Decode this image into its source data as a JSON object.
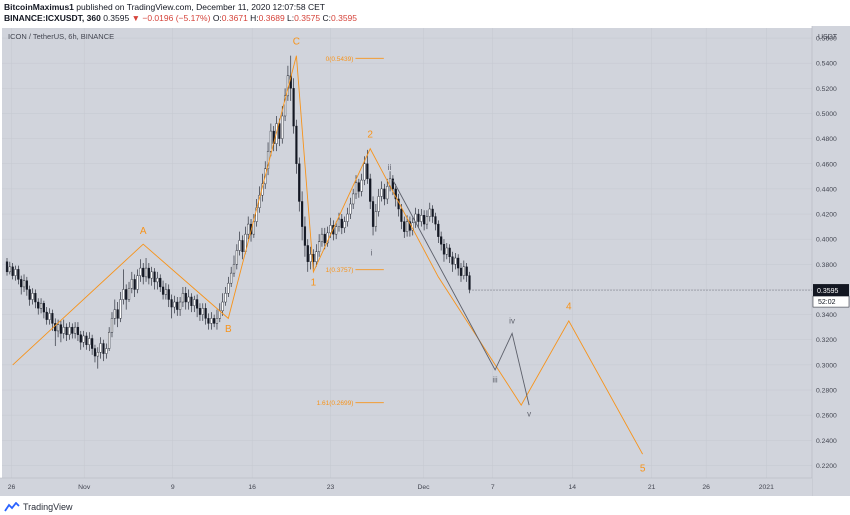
{
  "header": {
    "author": "BitcoinMaximus1",
    "published_text": "published on TradingView.com, December 11, 2020 12:07:58 CET",
    "symbol_line": "BINANCE:ICXUSDT, 360",
    "price": "0.3595",
    "arrow": "▼",
    "change": "−0.0196 (−5.17%)",
    "o_label": "O:",
    "o_val": "0.3671",
    "h_label": "H:",
    "h_val": "0.3689",
    "l_label": "L:",
    "l_val": "0.3575",
    "c_label": "C:",
    "c_val": "0.3595"
  },
  "footer": {
    "brand": "TradingView"
  },
  "chart_data": {
    "type": "candlestick",
    "title": "ICON / TetherUS, 6h, BINANCE",
    "currency": "USDT",
    "x_ticks": [
      "26",
      "Nov",
      "9",
      "16",
      "23",
      "Dec",
      "7",
      "14",
      "21",
      "26",
      "2021"
    ],
    "y_ticks": [
      "0.2200",
      "0.2400",
      "0.2600",
      "0.2800",
      "0.3000",
      "0.3200",
      "0.3400",
      "0.3600",
      "0.3800",
      "0.4000",
      "0.4200",
      "0.4400",
      "0.4600",
      "0.4800",
      "0.5000",
      "0.5200",
      "0.5400",
      "0.5600"
    ],
    "y_range": [
      0.21,
      0.568
    ],
    "last_price": "0.3595",
    "countdown": "52:02",
    "colors": {
      "background": "#d1d4dc",
      "orange": "#f7931a",
      "wave": "#5d606b",
      "candle": "#131722",
      "grid": "#c5c8d0"
    },
    "orange_path": [
      [
        0.5,
        0.3
      ],
      [
        12,
        0.396
      ],
      [
        19.5,
        0.337
      ],
      [
        25.5,
        0.546
      ],
      [
        27,
        0.374
      ],
      [
        32,
        0.472
      ],
      [
        38,
        0.37
      ],
      [
        45.3,
        0.268
      ],
      [
        49.5,
        0.335
      ],
      [
        56,
        0.229
      ]
    ],
    "wave_path": [
      [
        34,
        0.447
      ],
      [
        43,
        0.296
      ],
      [
        44.5,
        0.325
      ],
      [
        46,
        0.268
      ]
    ],
    "fib_levels": [
      {
        "label": "0(0.5439)",
        "value": 0.5439
      },
      {
        "label": "1(0.3757)",
        "value": 0.3757
      },
      {
        "label": "1.61(0.2699)",
        "value": 0.2699
      }
    ],
    "wave_labels": [
      {
        "text": "A",
        "x": 12,
        "y": 0.404,
        "color": "orange"
      },
      {
        "text": "B",
        "x": 19.5,
        "y": 0.326,
        "color": "orange"
      },
      {
        "text": "C",
        "x": 25.5,
        "y": 0.555,
        "color": "orange"
      },
      {
        "text": "1",
        "x": 27,
        "y": 0.363,
        "color": "orange"
      },
      {
        "text": "2",
        "x": 32,
        "y": 0.481,
        "color": "orange"
      },
      {
        "text": "4",
        "x": 49.5,
        "y": 0.344,
        "color": "orange"
      },
      {
        "text": "5",
        "x": 56,
        "y": 0.215,
        "color": "orange"
      },
      {
        "text": "i",
        "x": 32.1,
        "y": 0.387,
        "color": "wave"
      },
      {
        "text": "ii",
        "x": 33.7,
        "y": 0.455,
        "color": "wave"
      },
      {
        "text": "iii",
        "x": 43,
        "y": 0.286,
        "color": "wave"
      },
      {
        "text": "iv",
        "x": 44.5,
        "y": 0.333,
        "color": "wave"
      },
      {
        "text": "v",
        "x": 46,
        "y": 0.259,
        "color": "wave"
      }
    ],
    "candles": [
      [
        0.0,
        0.382,
        0.374,
        0.385,
        0.371
      ],
      [
        0.25,
        0.374,
        0.378,
        0.382,
        0.372
      ],
      [
        0.5,
        0.378,
        0.371,
        0.381,
        0.368
      ],
      [
        0.75,
        0.371,
        0.376,
        0.379,
        0.367
      ],
      [
        1.0,
        0.376,
        0.368,
        0.379,
        0.364
      ],
      [
        1.25,
        0.368,
        0.362,
        0.371,
        0.356
      ],
      [
        1.5,
        0.362,
        0.367,
        0.372,
        0.358
      ],
      [
        1.75,
        0.367,
        0.36,
        0.37,
        0.355
      ],
      [
        2.0,
        0.36,
        0.352,
        0.363,
        0.347
      ],
      [
        2.25,
        0.352,
        0.357,
        0.361,
        0.348
      ],
      [
        2.5,
        0.357,
        0.35,
        0.36,
        0.345
      ],
      [
        2.75,
        0.35,
        0.345,
        0.353,
        0.34
      ],
      [
        3.0,
        0.345,
        0.349,
        0.353,
        0.341
      ],
      [
        3.25,
        0.349,
        0.342,
        0.351,
        0.337
      ],
      [
        3.5,
        0.342,
        0.336,
        0.346,
        0.332
      ],
      [
        3.75,
        0.336,
        0.341,
        0.345,
        0.332
      ],
      [
        4.0,
        0.341,
        0.333,
        0.344,
        0.327
      ],
      [
        4.25,
        0.333,
        0.327,
        0.337,
        0.315
      ],
      [
        4.5,
        0.327,
        0.332,
        0.336,
        0.322
      ],
      [
        4.75,
        0.332,
        0.325,
        0.335,
        0.318
      ],
      [
        5.0,
        0.325,
        0.33,
        0.336,
        0.321
      ],
      [
        5.25,
        0.33,
        0.324,
        0.333,
        0.319
      ],
      [
        5.5,
        0.324,
        0.33,
        0.334,
        0.32
      ],
      [
        5.75,
        0.33,
        0.325,
        0.333,
        0.321
      ],
      [
        6.0,
        0.325,
        0.33,
        0.334,
        0.321
      ],
      [
        6.25,
        0.33,
        0.324,
        0.334,
        0.319
      ],
      [
        6.5,
        0.324,
        0.318,
        0.327,
        0.312
      ],
      [
        6.75,
        0.318,
        0.323,
        0.327,
        0.314
      ],
      [
        7.0,
        0.323,
        0.316,
        0.326,
        0.312
      ],
      [
        7.25,
        0.316,
        0.321,
        0.326,
        0.311
      ],
      [
        7.5,
        0.321,
        0.313,
        0.324,
        0.308
      ],
      [
        7.75,
        0.313,
        0.307,
        0.316,
        0.302
      ],
      [
        8.0,
        0.307,
        0.31,
        0.314,
        0.297
      ],
      [
        8.25,
        0.31,
        0.317,
        0.322,
        0.305
      ],
      [
        8.5,
        0.317,
        0.309,
        0.32,
        0.303
      ],
      [
        8.75,
        0.309,
        0.313,
        0.317,
        0.305
      ],
      [
        9.0,
        0.313,
        0.326,
        0.33,
        0.311
      ],
      [
        9.25,
        0.326,
        0.337,
        0.342,
        0.322
      ],
      [
        9.5,
        0.337,
        0.344,
        0.352,
        0.332
      ],
      [
        9.75,
        0.344,
        0.337,
        0.35,
        0.33
      ],
      [
        10.0,
        0.337,
        0.352,
        0.358,
        0.334
      ],
      [
        10.25,
        0.352,
        0.36,
        0.376,
        0.348
      ],
      [
        10.5,
        0.36,
        0.352,
        0.364,
        0.344
      ],
      [
        10.75,
        0.352,
        0.361,
        0.366,
        0.35
      ],
      [
        11.0,
        0.361,
        0.368,
        0.374,
        0.357
      ],
      [
        11.25,
        0.368,
        0.36,
        0.372,
        0.354
      ],
      [
        11.5,
        0.36,
        0.371,
        0.376,
        0.357
      ],
      [
        11.75,
        0.371,
        0.377,
        0.384,
        0.366
      ],
      [
        12.0,
        0.377,
        0.37,
        0.381,
        0.364
      ],
      [
        12.25,
        0.37,
        0.377,
        0.385,
        0.366
      ],
      [
        12.5,
        0.377,
        0.369,
        0.381,
        0.364
      ],
      [
        12.75,
        0.369,
        0.374,
        0.378,
        0.363
      ],
      [
        13.0,
        0.374,
        0.366,
        0.377,
        0.36
      ],
      [
        13.25,
        0.366,
        0.369,
        0.374,
        0.36
      ],
      [
        13.5,
        0.369,
        0.362,
        0.372,
        0.358
      ],
      [
        13.75,
        0.362,
        0.356,
        0.367,
        0.352
      ],
      [
        14.0,
        0.356,
        0.36,
        0.365,
        0.352
      ],
      [
        14.25,
        0.36,
        0.352,
        0.364,
        0.346
      ],
      [
        14.5,
        0.352,
        0.346,
        0.356,
        0.337
      ],
      [
        14.75,
        0.346,
        0.35,
        0.355,
        0.341
      ],
      [
        15.0,
        0.35,
        0.344,
        0.354,
        0.339
      ],
      [
        15.25,
        0.344,
        0.35,
        0.354,
        0.339
      ],
      [
        15.5,
        0.35,
        0.357,
        0.362,
        0.346
      ],
      [
        15.75,
        0.357,
        0.35,
        0.362,
        0.344
      ],
      [
        16.0,
        0.35,
        0.354,
        0.36,
        0.344
      ],
      [
        16.25,
        0.354,
        0.347,
        0.357,
        0.342
      ],
      [
        16.5,
        0.347,
        0.352,
        0.355,
        0.342
      ],
      [
        16.75,
        0.352,
        0.345,
        0.356,
        0.338
      ],
      [
        17.0,
        0.345,
        0.34,
        0.349,
        0.335
      ],
      [
        17.25,
        0.34,
        0.345,
        0.349,
        0.335
      ],
      [
        17.5,
        0.345,
        0.337,
        0.349,
        0.332
      ],
      [
        17.75,
        0.337,
        0.333,
        0.341,
        0.328
      ],
      [
        18.0,
        0.333,
        0.337,
        0.342,
        0.328
      ],
      [
        18.25,
        0.337,
        0.333,
        0.34,
        0.33
      ],
      [
        18.5,
        0.333,
        0.337,
        0.344,
        0.328
      ],
      [
        18.75,
        0.337,
        0.343,
        0.349,
        0.334
      ],
      [
        19.0,
        0.343,
        0.35,
        0.357,
        0.339
      ],
      [
        19.25,
        0.35,
        0.357,
        0.362,
        0.347
      ],
      [
        19.5,
        0.357,
        0.365,
        0.37,
        0.354
      ],
      [
        19.75,
        0.365,
        0.373,
        0.378,
        0.362
      ],
      [
        20.0,
        0.373,
        0.38,
        0.387,
        0.37
      ],
      [
        20.25,
        0.38,
        0.391,
        0.396,
        0.376
      ],
      [
        20.5,
        0.391,
        0.399,
        0.406,
        0.387
      ],
      [
        20.75,
        0.399,
        0.39,
        0.403,
        0.384
      ],
      [
        21.0,
        0.39,
        0.404,
        0.41,
        0.388
      ],
      [
        21.25,
        0.404,
        0.412,
        0.418,
        0.4
      ],
      [
        21.5,
        0.412,
        0.404,
        0.416,
        0.398
      ],
      [
        21.75,
        0.404,
        0.414,
        0.42,
        0.401
      ],
      [
        22.0,
        0.414,
        0.425,
        0.432,
        0.41
      ],
      [
        22.25,
        0.425,
        0.435,
        0.442,
        0.421
      ],
      [
        22.5,
        0.435,
        0.444,
        0.452,
        0.43
      ],
      [
        22.75,
        0.444,
        0.456,
        0.462,
        0.44
      ],
      [
        23.0,
        0.456,
        0.47,
        0.477,
        0.451
      ],
      [
        23.25,
        0.47,
        0.486,
        0.492,
        0.466
      ],
      [
        23.5,
        0.486,
        0.476,
        0.49,
        0.47
      ],
      [
        23.75,
        0.476,
        0.492,
        0.498,
        0.47
      ],
      [
        24.0,
        0.492,
        0.48,
        0.496,
        0.474
      ],
      [
        24.25,
        0.48,
        0.498,
        0.506,
        0.476
      ],
      [
        24.5,
        0.498,
        0.514,
        0.52,
        0.494
      ],
      [
        24.75,
        0.514,
        0.53,
        0.538,
        0.51
      ],
      [
        25.0,
        0.53,
        0.52,
        0.546,
        0.51
      ],
      [
        25.25,
        0.52,
        0.49,
        0.528,
        0.484
      ],
      [
        25.5,
        0.49,
        0.46,
        0.495,
        0.452
      ],
      [
        25.75,
        0.46,
        0.43,
        0.465,
        0.422
      ],
      [
        26.0,
        0.43,
        0.41,
        0.438,
        0.399
      ],
      [
        26.25,
        0.41,
        0.395,
        0.418,
        0.386
      ],
      [
        26.5,
        0.395,
        0.382,
        0.4,
        0.374
      ],
      [
        26.75,
        0.382,
        0.388,
        0.394,
        0.376
      ],
      [
        27.0,
        0.388,
        0.382,
        0.392,
        0.376
      ],
      [
        27.25,
        0.382,
        0.39,
        0.396,
        0.378
      ],
      [
        27.5,
        0.39,
        0.398,
        0.404,
        0.386
      ],
      [
        27.75,
        0.398,
        0.404,
        0.409,
        0.394
      ],
      [
        28.0,
        0.404,
        0.397,
        0.409,
        0.392
      ],
      [
        28.25,
        0.397,
        0.405,
        0.41,
        0.394
      ],
      [
        28.5,
        0.405,
        0.411,
        0.417,
        0.401
      ],
      [
        28.75,
        0.411,
        0.404,
        0.415,
        0.399
      ],
      [
        29.0,
        0.404,
        0.41,
        0.414,
        0.4
      ],
      [
        29.25,
        0.41,
        0.416,
        0.421,
        0.406
      ],
      [
        29.5,
        0.416,
        0.409,
        0.42,
        0.404
      ],
      [
        29.75,
        0.409,
        0.414,
        0.418,
        0.405
      ],
      [
        30.0,
        0.414,
        0.42,
        0.425,
        0.41
      ],
      [
        30.25,
        0.42,
        0.428,
        0.433,
        0.416
      ],
      [
        30.5,
        0.428,
        0.436,
        0.44,
        0.424
      ],
      [
        30.75,
        0.436,
        0.445,
        0.451,
        0.432
      ],
      [
        31.0,
        0.445,
        0.438,
        0.448,
        0.433
      ],
      [
        31.25,
        0.438,
        0.447,
        0.452,
        0.434
      ],
      [
        31.5,
        0.447,
        0.46,
        0.466,
        0.443
      ],
      [
        31.75,
        0.46,
        0.448,
        0.471,
        0.444
      ],
      [
        32.0,
        0.448,
        0.43,
        0.452,
        0.424
      ],
      [
        32.25,
        0.43,
        0.41,
        0.434,
        0.403
      ],
      [
        32.5,
        0.41,
        0.422,
        0.428,
        0.406
      ],
      [
        32.75,
        0.422,
        0.434,
        0.44,
        0.418
      ],
      [
        33.0,
        0.434,
        0.44,
        0.446,
        0.43
      ],
      [
        33.25,
        0.44,
        0.432,
        0.444,
        0.427
      ],
      [
        33.5,
        0.432,
        0.442,
        0.448,
        0.428
      ],
      [
        33.75,
        0.442,
        0.448,
        0.454,
        0.438
      ],
      [
        34.0,
        0.448,
        0.44,
        0.451,
        0.435
      ],
      [
        34.25,
        0.44,
        0.432,
        0.444,
        0.426
      ],
      [
        34.5,
        0.432,
        0.424,
        0.436,
        0.418
      ],
      [
        34.75,
        0.424,
        0.414,
        0.428,
        0.408
      ],
      [
        35.0,
        0.414,
        0.406,
        0.418,
        0.401
      ],
      [
        35.25,
        0.406,
        0.414,
        0.419,
        0.402
      ],
      [
        35.5,
        0.414,
        0.407,
        0.418,
        0.402
      ],
      [
        35.75,
        0.407,
        0.413,
        0.418,
        0.403
      ],
      [
        36.0,
        0.413,
        0.42,
        0.425,
        0.409
      ],
      [
        36.25,
        0.42,
        0.414,
        0.424,
        0.409
      ],
      [
        36.5,
        0.414,
        0.419,
        0.424,
        0.41
      ],
      [
        36.75,
        0.419,
        0.412,
        0.423,
        0.407
      ],
      [
        37.0,
        0.412,
        0.418,
        0.423,
        0.408
      ],
      [
        37.25,
        0.418,
        0.424,
        0.429,
        0.414
      ],
      [
        37.5,
        0.424,
        0.418,
        0.427,
        0.413
      ],
      [
        37.75,
        0.418,
        0.412,
        0.421,
        0.407
      ],
      [
        38.0,
        0.412,
        0.402,
        0.415,
        0.397
      ],
      [
        38.25,
        0.402,
        0.396,
        0.406,
        0.391
      ],
      [
        38.5,
        0.396,
        0.388,
        0.4,
        0.382
      ],
      [
        38.75,
        0.388,
        0.393,
        0.397,
        0.384
      ],
      [
        39.0,
        0.393,
        0.386,
        0.396,
        0.381
      ],
      [
        39.25,
        0.386,
        0.38,
        0.39,
        0.374
      ],
      [
        39.5,
        0.38,
        0.385,
        0.389,
        0.376
      ],
      [
        39.75,
        0.385,
        0.377,
        0.388,
        0.371
      ],
      [
        40.0,
        0.377,
        0.371,
        0.381,
        0.366
      ],
      [
        40.25,
        0.371,
        0.378,
        0.383,
        0.368
      ],
      [
        40.5,
        0.378,
        0.371,
        0.381,
        0.366
      ],
      [
        40.75,
        0.371,
        0.36,
        0.374,
        0.357
      ]
    ]
  }
}
